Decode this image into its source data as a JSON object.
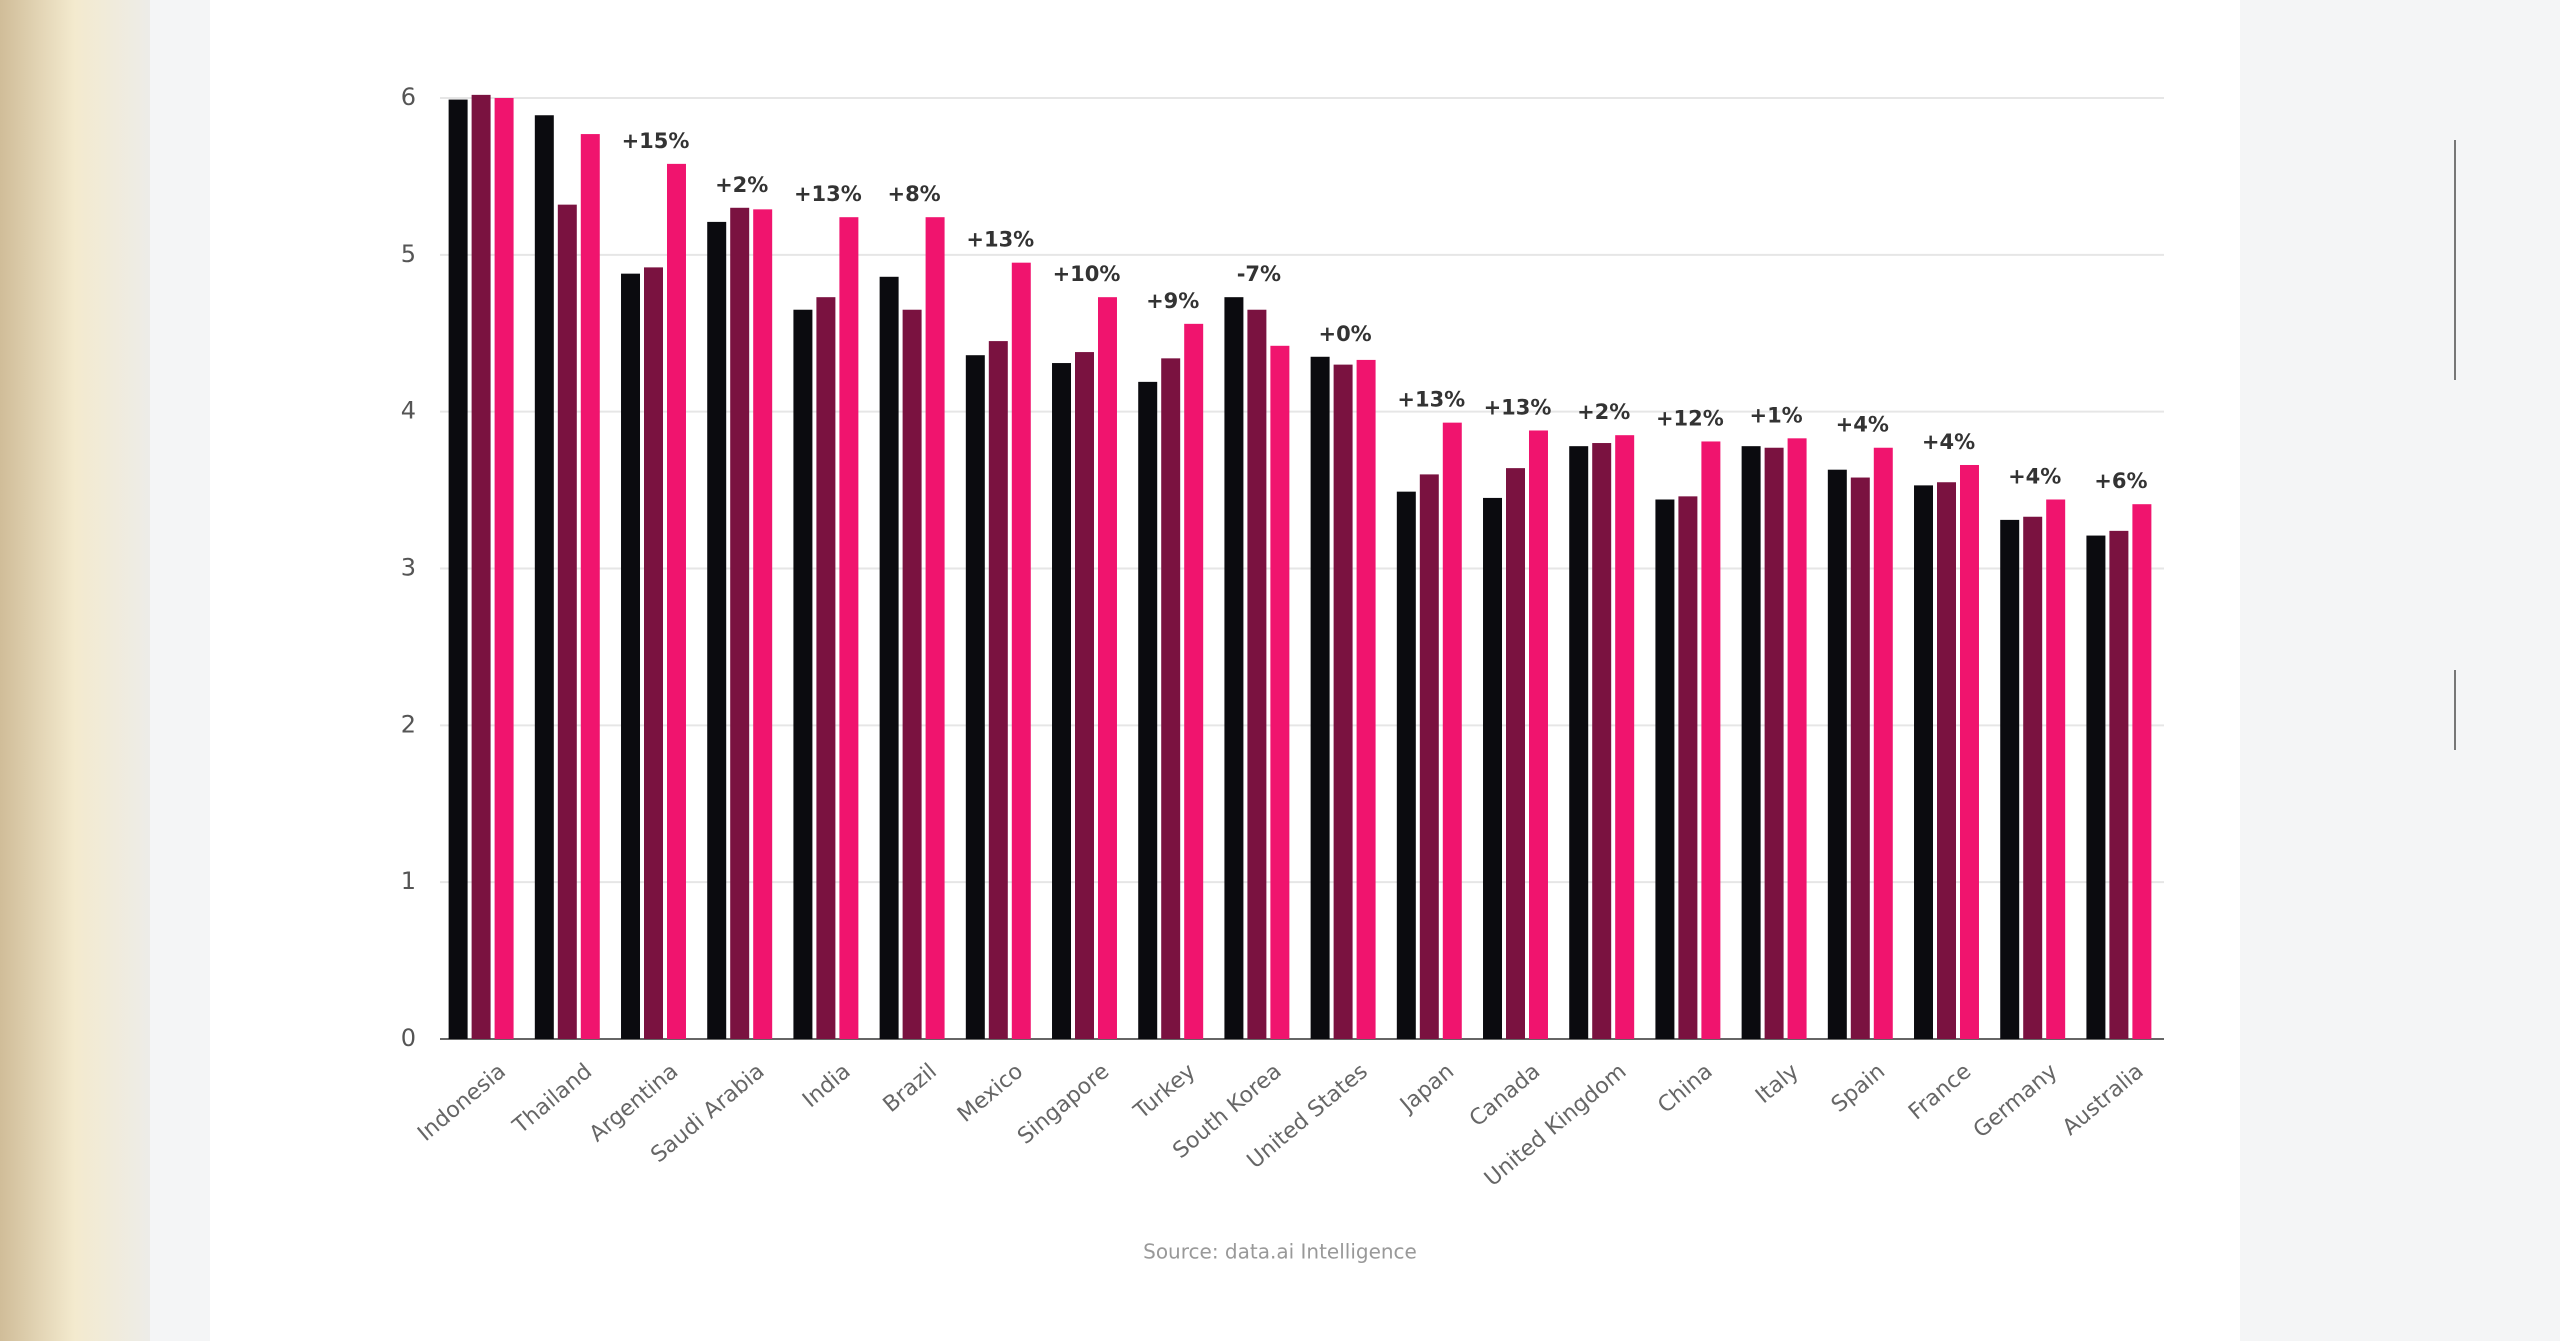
{
  "chart_data": {
    "type": "bar",
    "categories": [
      "Indonesia",
      "Thailand",
      "Argentina",
      "Saudi Arabia",
      "India",
      "Brazil",
      "Mexico",
      "Singapore",
      "Turkey",
      "South Korea",
      "United States",
      "Japan",
      "Canada",
      "United Kingdom",
      "China",
      "Italy",
      "Spain",
      "France",
      "Germany",
      "Australia"
    ],
    "series": [
      {
        "color": "#0b0b0f",
        "values": [
          5.99,
          5.89,
          4.88,
          5.21,
          4.65,
          4.86,
          4.36,
          4.31,
          4.19,
          4.73,
          4.35,
          3.49,
          3.45,
          3.78,
          3.44,
          3.78,
          3.63,
          3.53,
          3.31,
          3.21
        ]
      },
      {
        "color": "#7a1240",
        "values": [
          6.02,
          5.32,
          4.92,
          5.3,
          4.73,
          4.65,
          4.45,
          4.38,
          4.34,
          4.65,
          4.3,
          3.6,
          3.64,
          3.8,
          3.46,
          3.77,
          3.58,
          3.55,
          3.33,
          3.24
        ]
      },
      {
        "color": "#f0146e",
        "values": [
          6.0,
          5.77,
          5.58,
          5.29,
          5.24,
          5.24,
          4.95,
          4.73,
          4.56,
          4.42,
          4.33,
          3.93,
          3.88,
          3.85,
          3.81,
          3.83,
          3.77,
          3.66,
          3.44,
          3.41
        ]
      }
    ],
    "annotations": [
      null,
      null,
      "+15%",
      "+2%",
      "+13%",
      "+8%",
      "+13%",
      "+10%",
      "+9%",
      "-7%",
      "+0%",
      "+13%",
      "+13%",
      "+2%",
      "+12%",
      "+1%",
      "+4%",
      "+4%",
      "+4%",
      "+6%"
    ],
    "ylim": [
      0,
      6
    ],
    "yticks": [
      0,
      1,
      2,
      3,
      4,
      5,
      6
    ],
    "grid": true,
    "source": "Source: data.ai Intelligence"
  }
}
